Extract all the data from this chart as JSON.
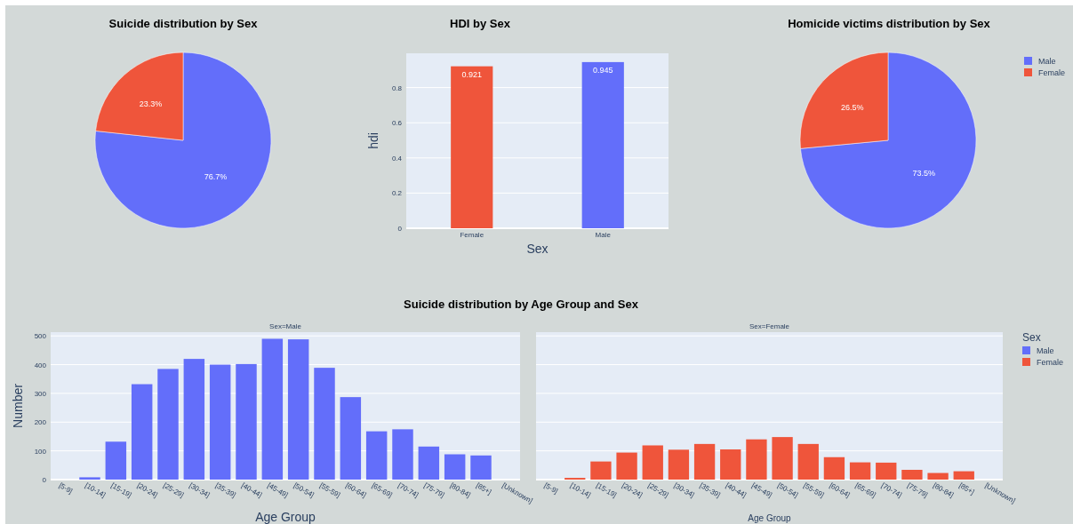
{
  "chart_data": [
    {
      "type": "pie",
      "title": "Suicide distribution by Sex",
      "values": [
        76.7,
        23.3
      ],
      "colors": [
        "#636efa",
        "#ef553b"
      ],
      "value_labels": [
        "76.7%",
        "23.3%"
      ]
    },
    {
      "type": "bar",
      "title": "HDI by Sex",
      "categories": [
        "Female",
        "Male"
      ],
      "values": [
        0.921,
        0.945
      ],
      "colors": [
        "#ef553b",
        "#636efa"
      ],
      "data_labels": true,
      "xlabel": "Sex",
      "ylabel": "hdi",
      "ylim": [
        0,
        0.995
      ],
      "yticks": [
        0,
        0.2,
        0.4,
        0.6,
        0.8
      ],
      "grid": "y"
    },
    {
      "type": "pie",
      "title": "Homicide victims distribution by Sex",
      "categories": [
        "Male",
        "Female"
      ],
      "values": [
        73.5,
        26.5
      ],
      "colors": [
        "#636efa",
        "#ef553b"
      ],
      "value_labels": [
        "73.5%",
        "26.5%"
      ],
      "legend": "right"
    },
    {
      "type": "bar",
      "title": "Suicide distribution by Age Group and Sex",
      "subtitle": "Sex=Male",
      "xlabel": "Age Group",
      "ylabel": "Number",
      "categories": [
        "[5-9]",
        "[10-14]",
        "[15-19]",
        "[20-24]",
        "[25-29]",
        "[30-34]",
        "[35-39]",
        "[40-44]",
        "[45-49]",
        "[50-54]",
        "[55-59]",
        "[60-64]",
        "[65-69]",
        "[70-74]",
        "[75-79]",
        "[80-84]",
        "[85+]",
        "[Unknown]"
      ],
      "ylim": [
        0,
        513
      ],
      "yticks": [
        0,
        100,
        200,
        300,
        400,
        500
      ],
      "grid": "y",
      "legend": "right",
      "series": [
        {
          "name": "Male",
          "color": "#636efa",
          "values": [
            0,
            8,
            132,
            332,
            385,
            420,
            400,
            402,
            490,
            488,
            389,
            287,
            168,
            175,
            115,
            88,
            84,
            0
          ]
        }
      ]
    },
    {
      "type": "bar",
      "subtitle": "Sex=Female",
      "xlabel": "Age Group",
      "categories": [
        "[5-9]",
        "[10-14]",
        "[15-19]",
        "[20-24]",
        "[25-29]",
        "[30-34]",
        "[35-39]",
        "[40-44]",
        "[45-49]",
        "[50-54]",
        "[55-59]",
        "[60-64]",
        "[65-69]",
        "[70-74]",
        "[75-79]",
        "[80-84]",
        "[85+]",
        "[Unknown]"
      ],
      "ylim": [
        0,
        513
      ],
      "yticks": [
        0,
        100,
        200,
        300,
        400,
        500
      ],
      "grid": "y",
      "tick_labels": "x",
      "legend": "right",
      "legend_title": "Sex",
      "series": [
        {
          "name": "Female",
          "color": "#ef553b",
          "values": [
            0,
            6,
            63,
            94,
            119,
            104,
            124,
            105,
            140,
            148,
            124,
            78,
            60,
            59,
            34,
            23,
            29,
            0
          ]
        }
      ]
    }
  ]
}
